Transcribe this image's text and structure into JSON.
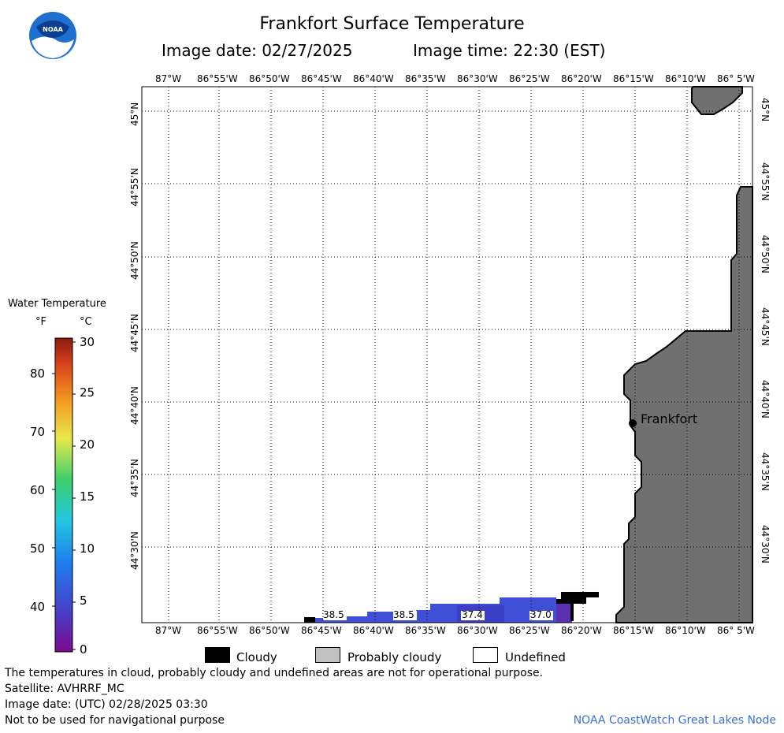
{
  "header": {
    "title": "Frankfort Surface Temperature",
    "image_date": "Image date: 02/27/2025",
    "image_time": "Image time: 22:30 (EST)"
  },
  "logo": {
    "text": "NOAA"
  },
  "map": {
    "lon_labels": [
      "87°W",
      "86°55'W",
      "86°50'W",
      "86°45'W",
      "86°40'W",
      "86°35'W",
      "86°30'W",
      "86°25'W",
      "86°20'W",
      "86°15'W",
      "86°10'W",
      "86° 5'W"
    ],
    "lat_labels": [
      "45°N",
      "44°55'N",
      "44°50'N",
      "44°45'N",
      "44°40'N",
      "44°35'N",
      "44°30'N"
    ],
    "city": "Frankfort",
    "temp_labels": [
      "38.5",
      "38.5",
      "37.4",
      "37.0"
    ],
    "colors": {
      "land": "#707070",
      "cloud": "#000000",
      "water_cold": "#3a3fcf",
      "water_mid": "#3f5ad8",
      "grid": "#000000"
    }
  },
  "legend": {
    "title": "Water Temperature",
    "unit_f": "°F",
    "unit_c": "°C",
    "f_labels": [
      "80",
      "70",
      "60",
      "50",
      "40"
    ],
    "c_labels": [
      "30",
      "25",
      "20",
      "15",
      "10",
      "5",
      "0"
    ],
    "items": [
      {
        "label": "Cloudy",
        "color": "#000000"
      },
      {
        "label": "Probably cloudy",
        "color": "#c0c0c0"
      },
      {
        "label": "Undefined",
        "color": "#ffffff"
      }
    ]
  },
  "footer": {
    "line1": "The temperatures in cloud, probably cloudy and undefined areas are not for operational purpose.",
    "line2": "Satellite: AVHRRF_MC",
    "line3": "Image date: (UTC) 02/28/2025  03:30",
    "line4": "Not to be used for navigational purpose",
    "credit": "NOAA CoastWatch Great Lakes Node"
  }
}
